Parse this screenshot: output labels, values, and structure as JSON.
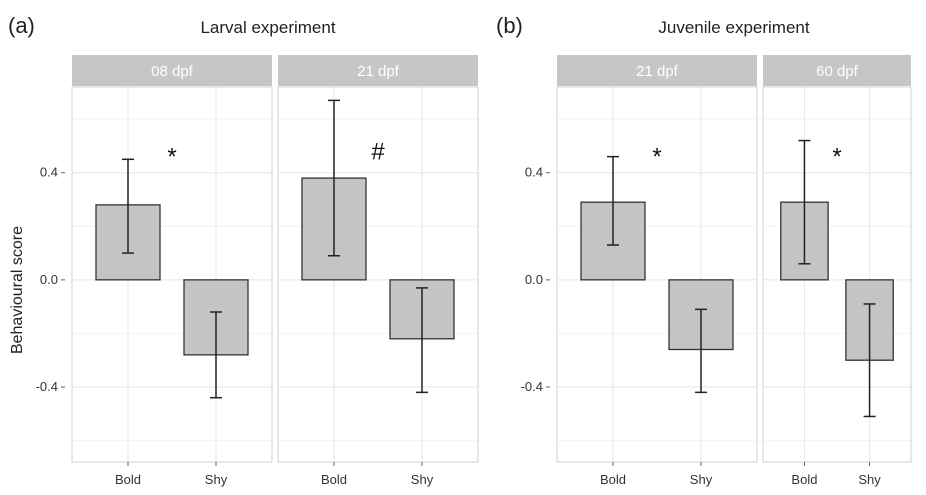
{
  "chart_data": {
    "type": "bar",
    "ylabel": "Behavioural score",
    "ylim": [
      -0.68,
      0.72
    ],
    "yticks": [
      -0.4,
      0.0,
      0.4
    ],
    "ytick_labels": [
      "-0.4",
      "0.0",
      "0.4"
    ],
    "categories": [
      "Bold",
      "Shy"
    ],
    "groups": [
      {
        "letter": "(a)",
        "title": "Larval experiment",
        "facets": [
          {
            "label": "08 dpf",
            "values": [
              0.28,
              -0.28
            ],
            "err_low": [
              0.1,
              -0.44
            ],
            "err_high": [
              0.45,
              -0.12
            ],
            "annotation": "*"
          },
          {
            "label": "21 dpf",
            "values": [
              0.38,
              -0.22
            ],
            "err_low": [
              0.09,
              -0.42
            ],
            "err_high": [
              0.67,
              -0.03
            ],
            "annotation": "#"
          }
        ]
      },
      {
        "letter": "(b)",
        "title": "Juvenile experiment",
        "facets": [
          {
            "label": "21 dpf",
            "values": [
              0.29,
              -0.26
            ],
            "err_low": [
              0.13,
              -0.42
            ],
            "err_high": [
              0.46,
              -0.11
            ],
            "annotation": "*"
          },
          {
            "label": "60 dpf",
            "values": [
              0.29,
              -0.3
            ],
            "err_low": [
              0.06,
              -0.51
            ],
            "err_high": [
              0.52,
              -0.09
            ],
            "annotation": "*"
          }
        ]
      }
    ],
    "grid": true,
    "legend": "none",
    "colors": {
      "bar_fill": "#c4c4c4",
      "bar_edge": "#333333",
      "strip": "#c6c6c6",
      "strip_text": "#ffffff"
    }
  }
}
